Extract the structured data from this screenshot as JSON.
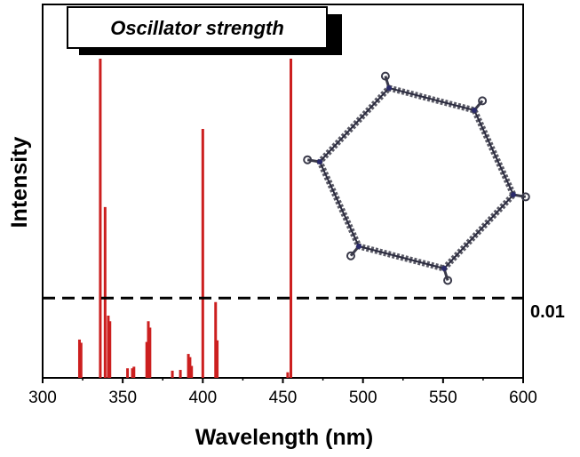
{
  "chart_data": {
    "type": "bar",
    "title": "Oscillator strength",
    "xlabel": "Wavelength (nm)",
    "ylabel": "Intensity",
    "xlim": [
      300,
      600
    ],
    "ylim": [
      0,
      0.04
    ],
    "xticks": [
      300,
      350,
      400,
      450,
      500,
      550,
      600
    ],
    "xtick_labels": [
      "300",
      "350",
      "400",
      "450",
      "500",
      "550",
      "600"
    ],
    "grid": false,
    "series": [
      {
        "color": "#cc1f1f",
        "x": [
          323,
          324,
          336,
          339,
          341,
          342,
          353,
          356,
          357,
          365,
          366,
          367,
          381,
          386,
          391,
          392,
          393,
          400,
          408,
          409,
          453,
          455
        ],
        "y": [
          0.0048,
          0.0044,
          0.04,
          0.0214,
          0.0078,
          0.0071,
          0.0012,
          0.0012,
          0.0014,
          0.0045,
          0.0071,
          0.0063,
          0.0009,
          0.001,
          0.003,
          0.0026,
          0.0015,
          0.0312,
          0.0095,
          0.0047,
          0.0007,
          0.04
        ]
      }
    ],
    "reference_line": {
      "y": 0.01,
      "label": "0.01",
      "style": "dashed"
    }
  },
  "inset": {
    "icon": "hexagonal-macrocycle-structure-icon"
  }
}
